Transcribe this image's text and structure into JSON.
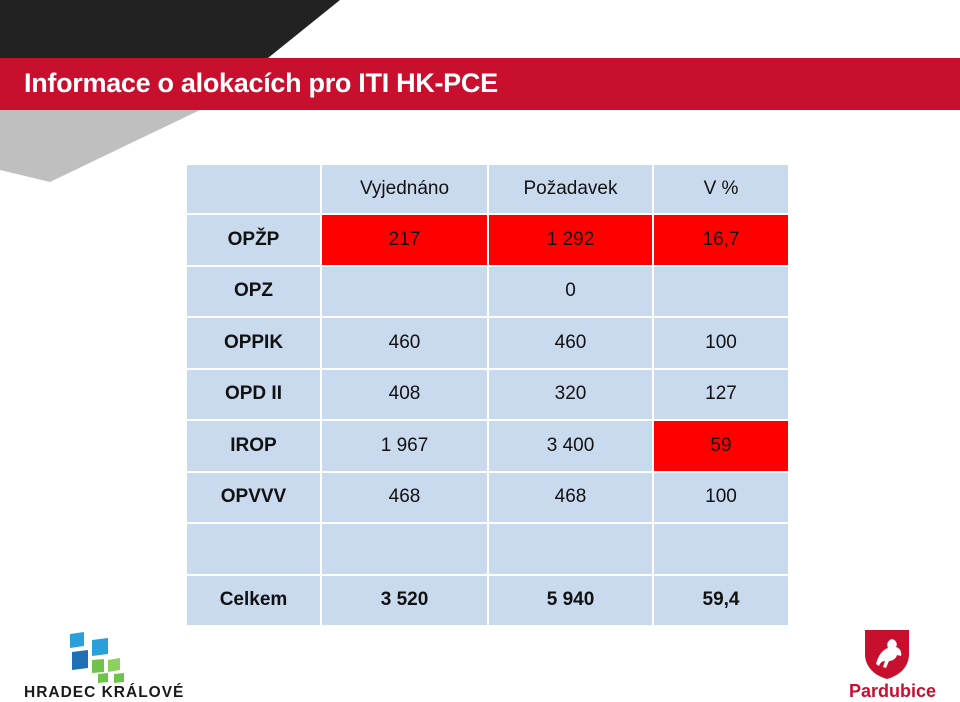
{
  "title": "Informace o alokacích pro ITI HK-PCE",
  "table": {
    "headers": [
      "",
      "Vyjednáno",
      "Požadavek",
      "V %"
    ],
    "rows": [
      {
        "label": "OPŽP",
        "cells": [
          "217",
          "1 292",
          "16,7"
        ]
      },
      {
        "label": "OPZ",
        "cells": [
          "",
          "0",
          ""
        ]
      },
      {
        "label": "OPPIK",
        "cells": [
          "460",
          "460",
          "100"
        ]
      },
      {
        "label": "OPD II",
        "cells": [
          "408",
          "320",
          "127"
        ]
      },
      {
        "label": "IROP",
        "cells": [
          "1 967",
          "3 400",
          "59"
        ]
      },
      {
        "label": "OPVVV",
        "cells": [
          "468",
          "468",
          "100"
        ]
      },
      {
        "label": "",
        "cells": [
          "",
          "",
          ""
        ]
      },
      {
        "label": "Celkem",
        "cells": [
          "3 520",
          "5 940",
          "59,4"
        ]
      }
    ],
    "highlight_color": "#ff0000",
    "cell_color": "#c9d9ee"
  },
  "logos": {
    "left": {
      "name": "HRADEC KRÁLOVÉ"
    },
    "right": {
      "name": "Pardubice"
    }
  },
  "colors": {
    "title_bar": "#c8102e",
    "dark_shape": "#222222",
    "gray_shape": "#bfbfbf"
  }
}
